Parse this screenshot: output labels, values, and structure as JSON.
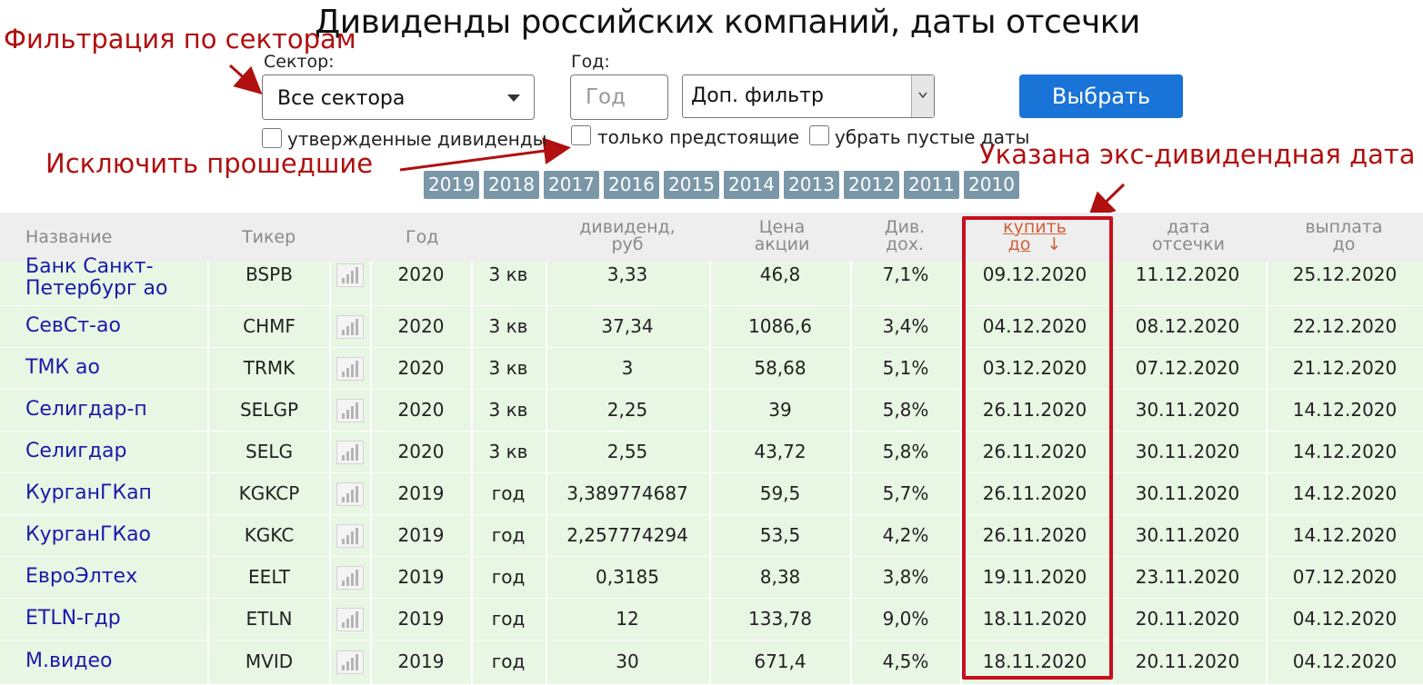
{
  "page": {
    "title": "Дивиденды российских компаний, даты отсечки"
  },
  "annotations": {
    "sector_filter": "Фильтрация по секторам",
    "exclude_past": "Исключить прошедшие",
    "ex_div_date": "Указана экс-дивидендная дата"
  },
  "filters": {
    "sector_label": "Сектор:",
    "sector_value": "Все сектора",
    "year_label": "Год:",
    "year_placeholder": "Год",
    "extra_filter_value": "Доп. фильтр",
    "submit_label": "Выбрать",
    "checkbox_approved": "утвержденные дивиденды",
    "checkbox_upcoming": "только предстоящие",
    "checkbox_no_empty": "убрать пустые даты",
    "years": [
      "2019",
      "2018",
      "2017",
      "2016",
      "2015",
      "2014",
      "2013",
      "2012",
      "2011",
      "2010"
    ]
  },
  "table": {
    "headers": {
      "name": "Название",
      "ticker": "Тикер",
      "year": "Год",
      "dividend_l1": "дивиденд,",
      "dividend_l2": "руб",
      "price_l1": "Цена",
      "price_l2": "акции",
      "yield_l1": "Див.",
      "yield_l2": "дох.",
      "buy_l1": "купить",
      "buy_l2": "до",
      "buy_sort": "↓",
      "cutoff_l1": "дата",
      "cutoff_l2": "отсечки",
      "pay_l1": "выплата",
      "pay_l2": "до"
    },
    "rows": [
      {
        "name1": "Банк Санкт-",
        "name2": "Петербург ао",
        "ticker": "BSPB",
        "year": "2020",
        "period": "3 кв",
        "dividend": "3,33",
        "price": "46,8",
        "yield": "7,1%",
        "buy_by": "09.12.2020",
        "cutoff": "11.12.2020",
        "pay_by": "25.12.2020"
      },
      {
        "name1": "СевСт-ао",
        "name2": "",
        "ticker": "CHMF",
        "year": "2020",
        "period": "3 кв",
        "dividend": "37,34",
        "price": "1086,6",
        "yield": "3,4%",
        "buy_by": "04.12.2020",
        "cutoff": "08.12.2020",
        "pay_by": "22.12.2020"
      },
      {
        "name1": "ТМК ао",
        "name2": "",
        "ticker": "TRMK",
        "year": "2020",
        "period": "3 кв",
        "dividend": "3",
        "price": "58,68",
        "yield": "5,1%",
        "buy_by": "03.12.2020",
        "cutoff": "07.12.2020",
        "pay_by": "21.12.2020"
      },
      {
        "name1": "Селигдар-п",
        "name2": "",
        "ticker": "SELGP",
        "year": "2020",
        "period": "3 кв",
        "dividend": "2,25",
        "price": "39",
        "yield": "5,8%",
        "buy_by": "26.11.2020",
        "cutoff": "30.11.2020",
        "pay_by": "14.12.2020"
      },
      {
        "name1": "Селигдар",
        "name2": "",
        "ticker": "SELG",
        "year": "2020",
        "period": "3 кв",
        "dividend": "2,55",
        "price": "43,72",
        "yield": "5,8%",
        "buy_by": "26.11.2020",
        "cutoff": "30.11.2020",
        "pay_by": "14.12.2020"
      },
      {
        "name1": "КурганГКап",
        "name2": "",
        "ticker": "KGKCP",
        "year": "2019",
        "period": "год",
        "dividend": "3,389774687",
        "price": "59,5",
        "yield": "5,7%",
        "buy_by": "26.11.2020",
        "cutoff": "30.11.2020",
        "pay_by": "14.12.2020"
      },
      {
        "name1": "КурганГКао",
        "name2": "",
        "ticker": "KGKC",
        "year": "2019",
        "period": "год",
        "dividend": "2,257774294",
        "price": "53,5",
        "yield": "4,2%",
        "buy_by": "26.11.2020",
        "cutoff": "30.11.2020",
        "pay_by": "14.12.2020"
      },
      {
        "name1": "ЕвроЭлтех",
        "name2": "",
        "ticker": "EELT",
        "year": "2019",
        "period": "год",
        "dividend": "0,3185",
        "price": "8,38",
        "yield": "3,8%",
        "buy_by": "19.11.2020",
        "cutoff": "23.11.2020",
        "pay_by": "07.12.2020"
      },
      {
        "name1": "ETLN-гдр",
        "name2": "",
        "ticker": "ETLN",
        "year": "2019",
        "period": "год",
        "dividend": "12",
        "price": "133,78",
        "yield": "9,0%",
        "buy_by": "18.11.2020",
        "cutoff": "20.11.2020",
        "pay_by": "04.12.2020"
      },
      {
        "name1": "М.видео",
        "name2": "",
        "ticker": "MVID",
        "year": "2019",
        "period": "год",
        "dividend": "30",
        "price": "671,4",
        "yield": "4,5%",
        "buy_by": "18.11.2020",
        "cutoff": "20.11.2020",
        "pay_by": "04.12.2020"
      }
    ]
  },
  "colors": {
    "accent": "#1a73d6",
    "annotation": "#b01010",
    "row_bg": "#e8f6e4",
    "link": "#1a1aa8",
    "year_btn": "#7a97a8",
    "sort_active": "#d0603a"
  }
}
